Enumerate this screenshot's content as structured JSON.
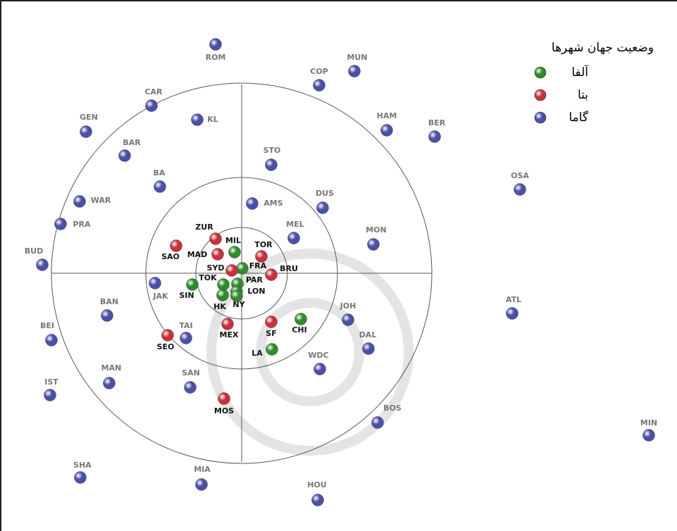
{
  "legend": {
    "title": "وضعیت جهان شهرها"
  },
  "groups": [
    {
      "label": "آلفا",
      "color": "#2f8a2a",
      "cities": [
        "MIL",
        "FRA",
        "TOK",
        "SIN",
        "PAR",
        "LON",
        "HK",
        "NY",
        "CHI",
        "LA"
      ]
    },
    {
      "label": "بتا",
      "color": "#c8303a",
      "cities": [
        "ZUR",
        "SAO",
        "MAD",
        "TOR",
        "SYD",
        "BRU",
        "MEX",
        "SF",
        "SEO",
        "MOS"
      ]
    },
    {
      "label": "گاما",
      "color": "#4a4fa8",
      "cities": [
        "ROM",
        "MUN",
        "COP",
        "CAR",
        "KL",
        "GEN",
        "HAM",
        "BER",
        "BAR",
        "STO",
        "BA",
        "OSA",
        "DUS",
        "AMS",
        "WAR",
        "PRA",
        "MEL",
        "MON",
        "BUD",
        "JAK",
        "BAN",
        "ATL",
        "JOH",
        "BEI",
        "TAI",
        "DAL",
        "WDC",
        "MAN",
        "IST",
        "SAN",
        "BOS",
        "MIN",
        "SHA",
        "MIA",
        "HOU"
      ]
    }
  ]
}
